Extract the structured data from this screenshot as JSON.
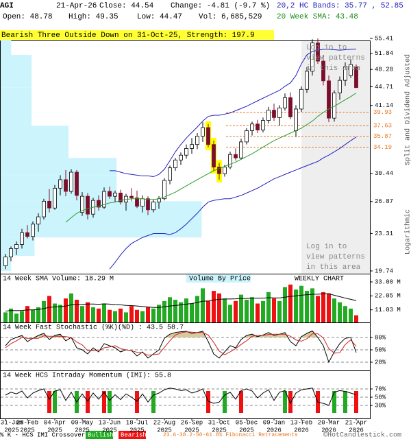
{
  "header": {
    "symbol": "AGI",
    "date": "21-Apr-26",
    "close": "Close: 44.54",
    "change": "Change: -4.81 (-9.7 %)",
    "open": "Open: 48.78",
    "high": "High: 49.35",
    "low": "Low: 44.47",
    "volume": "Vol: 6,685,529",
    "bands": "20,2 HC Bands: 35.77 , 52.85",
    "sma": "20 Week SMA: 43.48"
  },
  "chart_data": [
    {
      "type": "candlestick",
      "title": "Bearish Three Outside Down on 31-Oct-25, Strength: 197.9",
      "log_scale": true,
      "ylim": [
        19.74,
        55.41
      ],
      "yticks": [
        55.41,
        51.84,
        48.28,
        44.71,
        41.14,
        30.44,
        26.87,
        23.31,
        19.74
      ],
      "y_label": "Split and Dividend Adjusted",
      "scale_label": "Logarithmic",
      "up_color": "#ffffff",
      "down_color": "#7b0f2b",
      "open": [
        20.2,
        21.0,
        21.8,
        22.2,
        23.4,
        23.0,
        24.3,
        25.1,
        26.9,
        26.1,
        28.5,
        29.6,
        28.1,
        30.6,
        25.6,
        27.5,
        25.4,
        27.0,
        26.2,
        28.1,
        27.5,
        27.9,
        26.8,
        27.5,
        27.3,
        26.3,
        27.2,
        25.9,
        26.8,
        27.2,
        29.5,
        31.2,
        32.3,
        33.0,
        34.0,
        34.6,
        35.9,
        37.3,
        34.6,
        31.3,
        30.4,
        31.3,
        33.1,
        32.6,
        35.0,
        36.8,
        37.9,
        36.9,
        38.5,
        40.3,
        39.0,
        40.7,
        42.6,
        36.8,
        40.5,
        44.2,
        47.9,
        54.3,
        50.1,
        45.9,
        38.9,
        43.5,
        46.0,
        47.0,
        48.78
      ],
      "high": [
        21.3,
        22.0,
        22.5,
        23.8,
        24.2,
        24.6,
        25.5,
        27.2,
        28.4,
        28.9,
        30.2,
        30.9,
        31.0,
        30.9,
        28.0,
        27.9,
        27.3,
        27.6,
        28.6,
        28.7,
        28.2,
        28.3,
        27.8,
        28.5,
        28.2,
        27.6,
        27.5,
        27.1,
        27.5,
        29.8,
        31.5,
        32.6,
        33.4,
        34.6,
        35.6,
        36.4,
        38.2,
        37.9,
        35.2,
        31.9,
        31.6,
        33.5,
        34.0,
        35.5,
        37.2,
        38.3,
        38.6,
        39.0,
        40.9,
        41.5,
        41.2,
        43.4,
        43.6,
        41.2,
        44.8,
        48.8,
        55.2,
        55.4,
        51.5,
        47.0,
        44.0,
        46.8,
        49.8,
        50.5,
        49.35
      ],
      "low": [
        19.9,
        20.6,
        21.2,
        21.8,
        22.8,
        22.6,
        23.5,
        24.8,
        25.6,
        25.9,
        27.6,
        27.5,
        27.8,
        27.0,
        25.2,
        24.8,
        25.0,
        25.8,
        26.0,
        27.2,
        26.8,
        26.5,
        25.8,
        26.9,
        26.1,
        25.6,
        25.3,
        25.6,
        26.0,
        27.0,
        29.0,
        30.8,
        31.6,
        32.5,
        33.2,
        33.9,
        35.0,
        34.2,
        30.8,
        29.6,
        30.0,
        31.0,
        32.2,
        32.4,
        34.6,
        36.0,
        36.4,
        36.5,
        38.0,
        38.4,
        37.6,
        40.2,
        38.7,
        35.8,
        40.0,
        43.5,
        47.0,
        49.5,
        45.0,
        38.2,
        38.3,
        42.2,
        44.9,
        46.5,
        44.47
      ],
      "close": [
        21.0,
        21.8,
        22.2,
        23.4,
        23.0,
        24.3,
        25.1,
        26.9,
        26.1,
        28.5,
        29.6,
        28.1,
        30.6,
        27.6,
        27.5,
        25.4,
        27.0,
        26.2,
        28.1,
        27.5,
        27.9,
        26.8,
        27.5,
        27.3,
        26.3,
        27.2,
        25.9,
        26.8,
        27.2,
        29.5,
        31.2,
        32.3,
        33.0,
        34.0,
        34.6,
        35.9,
        37.3,
        34.6,
        31.3,
        30.4,
        31.3,
        33.1,
        32.6,
        35.0,
        36.8,
        37.9,
        36.9,
        38.5,
        40.3,
        39.0,
        40.7,
        42.6,
        39.1,
        40.5,
        44.2,
        47.9,
        54.3,
        50.1,
        45.9,
        38.9,
        43.5,
        46.0,
        48.9,
        49.35,
        44.54
      ],
      "series": [
        {
          "color": "#2a9a2a",
          "values": [
            null,
            null,
            null,
            null,
            null,
            null,
            null,
            null,
            null,
            null,
            null,
            24.5,
            25,
            25.5,
            25.8,
            26,
            26.2,
            26.3,
            26.5,
            26.7,
            26.8,
            27,
            27.1,
            27.2,
            27.2,
            27.2,
            27.1,
            27.1,
            27.2,
            27.4,
            27.7,
            28,
            28.4,
            28.8,
            29.2,
            29.6,
            30,
            30.4,
            30.8,
            31.1,
            31.4,
            31.7,
            32,
            32.4,
            32.8,
            33.2,
            33.7,
            34.2,
            34.7,
            35.2,
            35.6,
            36,
            36.4,
            36.8,
            37.2,
            37.8,
            38.4,
            39.2,
            39.9,
            40.5,
            41,
            41.6,
            42.2,
            42.8,
            43.48
          ]
        },
        {
          "color": "#2020c0",
          "values": [
            null,
            null,
            null,
            null,
            null,
            null,
            null,
            null,
            null,
            null,
            null,
            null,
            null,
            null,
            null,
            null,
            null,
            null,
            null,
            30.8,
            30.8,
            30.6,
            30.4,
            30.3,
            30.2,
            30.1,
            30.1,
            30.0,
            30.3,
            31.0,
            32.2,
            33.5,
            34.6,
            35.6,
            36.5,
            37.4,
            38.4,
            39.2,
            39.4,
            39.4,
            39.6,
            39.8,
            40.2,
            40.6,
            41.0,
            41.5,
            42.0,
            42.5,
            43.0,
            43.5,
            44.0,
            44.8,
            45.5,
            47.0,
            49.5,
            51.5,
            52.3,
            52.6,
            52.8,
            52.8,
            52.7,
            52.6,
            52.7,
            52.8,
            52.85
          ]
        },
        {
          "color": "#2020c0",
          "values": [
            null,
            null,
            null,
            null,
            null,
            null,
            null,
            null,
            null,
            null,
            null,
            null,
            null,
            null,
            null,
            null,
            null,
            null,
            null,
            19.9,
            20.5,
            21.2,
            21.8,
            22.3,
            22.6,
            22.9,
            23.1,
            23.3,
            23.3,
            23.3,
            23.2,
            23.4,
            23.8,
            24.3,
            24.9,
            25.5,
            26.2,
            26.8,
            27.0,
            27.1,
            27.2,
            27.2,
            27.4,
            27.6,
            27.9,
            28.2,
            28.5,
            28.9,
            29.3,
            29.7,
            30.0,
            30.3,
            30.6,
            30.9,
            31.2,
            31.5,
            31.8,
            32.1,
            32.6,
            33.0,
            33.5,
            34.0,
            34.6,
            35.2,
            35.77
          ]
        }
      ],
      "fib_levels": [
        39.93,
        37.63,
        35.87,
        34.19
      ],
      "fib_color": "#e87722",
      "highlights": [
        37,
        38,
        39
      ],
      "highlight_color": "#ffff00",
      "volume_by_price": {
        "title": "Volume By Price",
        "color": "#ccf4fc",
        "xlim": [
          0,
          60
        ],
        "bins": [
          19.74,
          21.1,
          22.9,
          26.9,
          30.2,
          32.6,
          37.6,
          44.6,
          51.5,
          55.41
        ],
        "values": [
          1.7,
          5.5,
          32.6,
          18.8,
          18.8,
          11,
          5,
          5,
          1.7
        ]
      },
      "locked_note": [
        "Log in to",
        "view patterns",
        "in this area"
      ]
    },
    {
      "type": "bar",
      "title": "14 Week SMA Volume: 18.29 M",
      "subtitle": "WEEKLY CHART",
      "ylim": [
        0,
        33.08
      ],
      "yticks": [
        {
          "value": 33.08,
          "label": "33.08 M"
        },
        {
          "value": 22.05,
          "label": "22.05 M"
        },
        {
          "value": 11.03,
          "label": "11.03 M"
        }
      ],
      "up_color": "#22aa22",
      "down_color": "#ee1111",
      "values": [
        9,
        12,
        8,
        10,
        14,
        11,
        13,
        18,
        22,
        16,
        15,
        20,
        24,
        19,
        14,
        17,
        13,
        12,
        16,
        11,
        10,
        12,
        9,
        14,
        11,
        10,
        13,
        12,
        15,
        18,
        21,
        19,
        17,
        20,
        16,
        22,
        28,
        18,
        26,
        24,
        20,
        15,
        18,
        23,
        19,
        21,
        16,
        18,
        25,
        20,
        18,
        29,
        31,
        27,
        30,
        26,
        28,
        22,
        25,
        24,
        20,
        17,
        14,
        12,
        6.69
      ],
      "series": [
        {
          "color": "#000000",
          "values": [
            10,
            10.5,
            10.4,
            10.5,
            11,
            11,
            11.3,
            12,
            13,
            13.3,
            13.5,
            14,
            15,
            15.3,
            15.4,
            15.6,
            15.6,
            15.4,
            15.7,
            15.5,
            15.2,
            15,
            14.5,
            14.4,
            14,
            13.6,
            13.3,
            12.9,
            12.9,
            13.4,
            14,
            14.4,
            15,
            15.5,
            16,
            16.8,
            17.8,
            18,
            18.8,
            19.3,
            19.6,
            19.6,
            19.7,
            20,
            20,
            20.2,
            20.2,
            20.3,
            20.6,
            20.5,
            20.4,
            21,
            21.6,
            22,
            22.6,
            23,
            23.3,
            23.4,
            23.6,
            23.8,
            22.5,
            21.4,
            20.3,
            19.3,
            18.29
          ]
        }
      ]
    },
    {
      "type": "line",
      "title": "14 Week Fast Stochastic (%K)(%D) : 43.5 58.7",
      "ylim": [
        0,
        100
      ],
      "yticks": [
        {
          "value": 80,
          "label": "80%"
        },
        {
          "value": 50,
          "label": "50%"
        },
        {
          "value": 20,
          "label": "20%"
        }
      ],
      "grid": true,
      "fill_color": "#d6caa0",
      "series": [
        {
          "color": "#000000",
          "values": [
            60,
            75,
            80,
            85,
            70,
            78,
            85,
            90,
            75,
            85,
            88,
            72,
            80,
            55,
            50,
            40,
            55,
            45,
            65,
            60,
            55,
            45,
            50,
            48,
            35,
            45,
            30,
            40,
            50,
            78,
            88,
            92,
            94,
            95,
            90,
            92,
            95,
            70,
            40,
            30,
            45,
            60,
            55,
            75,
            85,
            88,
            82,
            86,
            92,
            85,
            88,
            92,
            70,
            60,
            82,
            90,
            96,
            80,
            60,
            20,
            45,
            65,
            78,
            80,
            43.5
          ]
        },
        {
          "color": "#cc2222",
          "values": [
            55,
            65,
            72,
            80,
            78,
            78,
            78,
            84,
            83,
            83,
            83,
            82,
            80,
            69,
            62,
            48,
            48,
            47,
            55,
            57,
            60,
            53,
            50,
            48,
            44,
            43,
            37,
            38,
            40,
            56,
            72,
            86,
            91,
            94,
            93,
            92,
            92,
            86,
            68,
            47,
            38,
            45,
            53,
            63,
            72,
            83,
            85,
            85,
            87,
            88,
            88,
            88,
            83,
            74,
            71,
            77,
            89,
            89,
            79,
            53,
            42,
            43,
            63,
            74,
            58.7
          ]
        }
      ]
    },
    {
      "type": "line",
      "title": "14 Week HCS Intraday Momentum (IMI): 55.8",
      "ylim": [
        0,
        100
      ],
      "yticks": [
        {
          "value": 70,
          "label": "70%"
        },
        {
          "value": 50,
          "label": "50%"
        },
        {
          "value": 30,
          "label": "30%"
        }
      ],
      "grid": true,
      "series": [
        {
          "color": "#000000",
          "values": [
            55,
            62,
            58,
            65,
            48,
            60,
            66,
            70,
            45,
            65,
            68,
            42,
            62,
            38,
            58,
            40,
            60,
            45,
            62,
            42,
            56,
            44,
            58,
            50,
            40,
            58,
            38,
            55,
            60,
            68,
            72,
            70,
            66,
            68,
            60,
            64,
            70,
            40,
            35,
            38,
            55,
            62,
            45,
            66,
            70,
            65,
            48,
            60,
            68,
            42,
            62,
            66,
            35,
            60,
            68,
            70,
            72,
            38,
            35,
            30,
            62,
            66,
            64,
            60,
            55.8
          ]
        }
      ],
      "signals": [
        {
          "name": "Bullish",
          "color": "#22aa22",
          "x": [
            9,
            13,
            19,
            27,
            40,
            51,
            60,
            62
          ]
        },
        {
          "name": "Bearish",
          "color": "#ee1111",
          "x": [
            8,
            15,
            18,
            24,
            37,
            43,
            52,
            57,
            64
          ]
        }
      ],
      "xticks": [
        {
          "value": 0,
          "label": [
            "31-Jan",
            "2025"
          ]
        },
        {
          "value": 4,
          "label": [
            "28-Feb",
            "2025"
          ]
        },
        {
          "value": 9,
          "label": [
            "04-Apr",
            "2025"
          ]
        },
        {
          "value": 14,
          "label": [
            "09-May",
            "2025"
          ]
        },
        {
          "value": 19,
          "label": [
            "13-Jun",
            "2025"
          ]
        },
        {
          "value": 24,
          "label": [
            "18-Jul",
            "2025"
          ]
        },
        {
          "value": 29,
          "label": [
            "22-Aug",
            "2025"
          ]
        },
        {
          "value": 34,
          "label": [
            "26-Sep",
            "2025"
          ]
        },
        {
          "value": 39,
          "label": [
            "31-Oct",
            "2025"
          ]
        },
        {
          "value": 44,
          "label": [
            "05-Dec",
            "2025"
          ]
        },
        {
          "value": 49,
          "label": [
            "09-Jan",
            "2026"
          ]
        },
        {
          "value": 54,
          "label": [
            "13-Feb",
            "2026"
          ]
        },
        {
          "value": 59,
          "label": [
            "20-Mar",
            "2026"
          ]
        },
        {
          "value": 64,
          "label": [
            "21-Apr",
            "2026"
          ]
        }
      ]
    }
  ],
  "footer": {
    "crossover": "% K - HCS IMI Crossover,",
    "fib": "23.6-38.2-50-61.8% Fibonacci Retracements",
    "copyright": "©HotCandlestick.com"
  }
}
